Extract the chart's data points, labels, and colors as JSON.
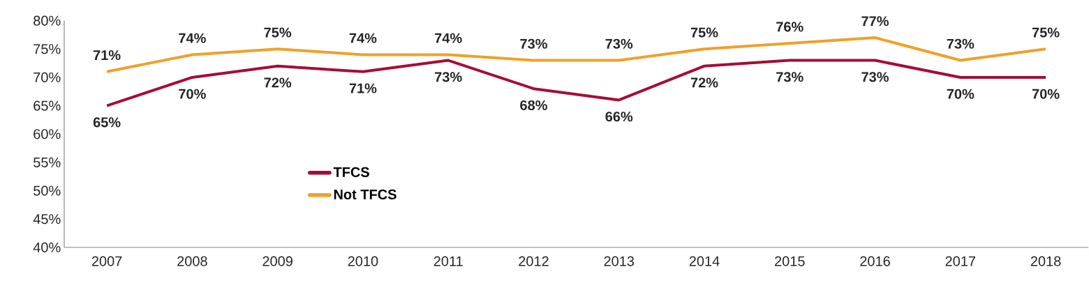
{
  "chart_data": {
    "type": "line",
    "categories": [
      "2007",
      "2008",
      "2009",
      "2010",
      "2011",
      "2012",
      "2013",
      "2014",
      "2015",
      "2016",
      "2017",
      "2018"
    ],
    "series": [
      {
        "name": "TFCS",
        "color": "#a50d38",
        "values": [
          65,
          70,
          72,
          71,
          73,
          68,
          66,
          72,
          73,
          73,
          70,
          70
        ],
        "value_labels": [
          "65%",
          "70%",
          "72%",
          "71%",
          "73%",
          "68%",
          "66%",
          "72%",
          "73%",
          "73%",
          "70%",
          "70%"
        ]
      },
      {
        "name": "Not TFCS",
        "color": "#f0a02a",
        "values": [
          71,
          74,
          75,
          74,
          74,
          73,
          73,
          75,
          76,
          77,
          73,
          75
        ],
        "value_labels": [
          "71%",
          "74%",
          "75%",
          "74%",
          "74%",
          "73%",
          "73%",
          "75%",
          "76%",
          "77%",
          "73%",
          "75%"
        ]
      }
    ],
    "ylim": [
      40,
      80
    ],
    "yticks": [
      {
        "value": 40,
        "label": "40%"
      },
      {
        "value": 45,
        "label": "45%"
      },
      {
        "value": 50,
        "label": "50%"
      },
      {
        "value": 55,
        "label": "55%"
      },
      {
        "value": 60,
        "label": "60%"
      },
      {
        "value": 65,
        "label": "65%"
      },
      {
        "value": 70,
        "label": "70%"
      },
      {
        "value": 75,
        "label": "75%"
      },
      {
        "value": 80,
        "label": "80%"
      }
    ],
    "grid": false,
    "legend": "left",
    "marker": "none",
    "line_style": "solid"
  }
}
